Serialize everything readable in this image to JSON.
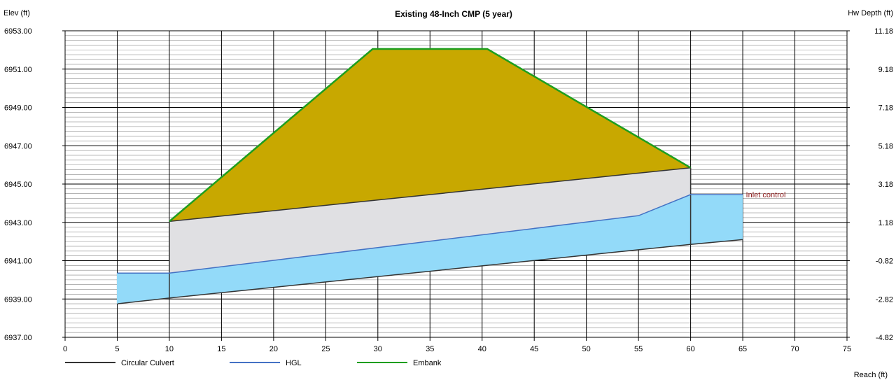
{
  "chart_data": {
    "type": "area",
    "title": "Existing 48-Inch CMP (5 year)",
    "ylabel_left": "Elev (ft)",
    "ylabel_right": "Hw Depth (ft)",
    "xlabel": "Reach (ft)",
    "xlim": [
      0,
      75
    ],
    "ylim": [
      6937,
      6953
    ],
    "x_ticks": [
      0,
      5,
      10,
      15,
      20,
      25,
      30,
      35,
      40,
      45,
      50,
      55,
      60,
      65,
      70,
      75
    ],
    "x_tick_labels": [
      "0",
      "5",
      "10",
      "15",
      "20",
      "25",
      "30",
      "35",
      "40",
      "45",
      "50",
      "55",
      "60",
      "65",
      "70",
      "75"
    ],
    "y_left_ticks": [
      6937,
      6939,
      6941,
      6943,
      6945,
      6947,
      6949,
      6951,
      6953
    ],
    "y_left_tick_labels": [
      "6937.00",
      "6939.00",
      "6941.00",
      "6943.00",
      "6945.00",
      "6947.00",
      "6949.00",
      "6951.00",
      "6953.00"
    ],
    "y_right_tick_labels": [
      "-4.82",
      "-2.82",
      "-0.82",
      "1.18",
      "3.18",
      "5.18",
      "7.18",
      "9.18",
      "11.18"
    ],
    "grid": true,
    "legend_position": "bottom-left",
    "legend": [
      {
        "name": "Circular Culvert",
        "color": "#333333"
      },
      {
        "name": "HGL",
        "color": "#4472c4"
      },
      {
        "name": "Embank",
        "color": "#1e9e1e"
      }
    ],
    "series": [
      {
        "name": "Circular Culvert",
        "role": "invert",
        "x": [
          5,
          10,
          60,
          65
        ],
        "y": [
          6938.75,
          6939.05,
          6941.85,
          6942.1
        ]
      },
      {
        "name": "Circular Culvert",
        "role": "crown",
        "x": [
          10,
          60
        ],
        "y": [
          6943.05,
          6945.85
        ]
      },
      {
        "name": "HGL",
        "x": [
          5,
          10,
          55,
          60,
          65
        ],
        "y": [
          6940.35,
          6940.35,
          6943.35,
          6944.45,
          6944.45
        ]
      },
      {
        "name": "Embank",
        "x": [
          10,
          29.5,
          40.5,
          60
        ],
        "y": [
          6943.05,
          6952.05,
          6952.05,
          6945.85
        ]
      }
    ],
    "annotations": [
      {
        "text": "Inlet control",
        "x": 65.3,
        "y": 6944.45
      }
    ],
    "colors": {
      "embankment_fill": "#c8a800",
      "culvert_fill": "#e0e0e3",
      "water_fill": "#93daf9",
      "grid": "#000000",
      "minor_grid": "#888888"
    }
  }
}
